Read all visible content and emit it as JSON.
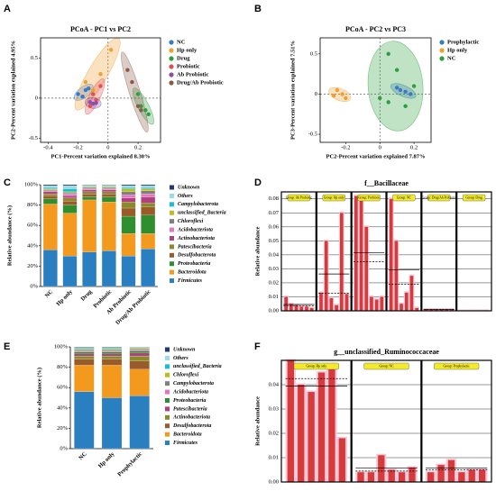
{
  "chart_data": [
    {
      "type": "scatter",
      "panel": "A",
      "title": "PCoA - PC1 vs PC2",
      "x_label": "PC1-Percent variation explained 8.30%",
      "y_label": "PC2-Percent variation explained 4.95%",
      "xlim": [
        -0.45,
        0.35
      ],
      "ylim": [
        -0.55,
        0.75
      ],
      "xticks": [
        -0.4,
        -0.2,
        0,
        0.2
      ],
      "yticks": [
        -0.5,
        0,
        0.5
      ],
      "series": [
        {
          "name": "NC",
          "color": "#3a78c9",
          "x": [
            -0.2,
            -0.15,
            -0.13,
            -0.17
          ],
          "y": [
            0.05,
            0.1,
            0.12,
            0.02
          ]
        },
        {
          "name": "Hp only",
          "color": "#f0a030",
          "x": [
            -0.15,
            -0.05,
            0.02,
            -0.1
          ],
          "y": [
            0.2,
            0.3,
            0.6,
            0.1
          ]
        },
        {
          "name": "Drug",
          "color": "#2e9e3e",
          "x": [
            0.2,
            0.22,
            0.25,
            0.27
          ],
          "y": [
            0.05,
            -0.1,
            -0.15,
            -0.2
          ]
        },
        {
          "name": "Probiotic",
          "color": "#e05050",
          "x": [
            -0.1,
            -0.08,
            -0.12,
            -0.05
          ],
          "y": [
            0.05,
            -0.02,
            -0.1,
            0.15
          ]
        },
        {
          "name": "Ab Probiotic",
          "color": "#8a4fa8",
          "x": [
            -0.12,
            -0.1,
            -0.08
          ],
          "y": [
            -0.05,
            -0.07,
            -0.06
          ]
        },
        {
          "name": "Drug/Ab Probiotic",
          "color": "#8b5a4a",
          "x": [
            0.13,
            0.16,
            0.2,
            0.22
          ],
          "y": [
            0.35,
            0.2,
            -0.1,
            -0.15
          ]
        }
      ]
    },
    {
      "type": "scatter",
      "panel": "B",
      "title": "PCoA - PC2 vs PC3",
      "x_label": "PC2-Percent variation explained 7.87%",
      "y_label": "PC3-Percent variation explained 7.51%",
      "xlim": [
        -0.35,
        0.3
      ],
      "ylim": [
        -0.6,
        0.7
      ],
      "xticks": [
        -0.2,
        0,
        0.2
      ],
      "yticks": [
        -0.5,
        0,
        0.5
      ],
      "series": [
        {
          "name": "Prophylactic",
          "color": "#3a78c9",
          "x": [
            0.12,
            0.15,
            0.18,
            0.1
          ],
          "y": [
            0.05,
            0.03,
            0.0,
            0.08
          ]
        },
        {
          "name": "Hp only",
          "color": "#f0a030",
          "x": [
            -0.25,
            -0.22,
            -0.2,
            -0.27
          ],
          "y": [
            0.05,
            0.0,
            -0.05,
            -0.02
          ]
        },
        {
          "name": "NC",
          "color": "#2e9e3e",
          "x": [
            0.05,
            0.1,
            0.05,
            0.15,
            0.0,
            0.2
          ],
          "y": [
            0.5,
            0.3,
            -0.1,
            -0.15,
            -0.05,
            0.1
          ]
        }
      ]
    },
    {
      "type": "stacked_bar",
      "panel": "C",
      "y_label": "Relative abundance (%)",
      "ylim": [
        0,
        100
      ],
      "yticks": [
        {
          "value": 0,
          "label": "0%"
        },
        {
          "value": 20,
          "label": "20%"
        },
        {
          "value": 40,
          "label": "40%"
        },
        {
          "value": 60,
          "label": "60%"
        },
        {
          "value": 80,
          "label": "80%"
        },
        {
          "value": 100,
          "label": "100%"
        }
      ],
      "categories": [
        "NC",
        "Hp only",
        "Drug",
        "Probiotic",
        "Ab Probiotic",
        "Drug/Ab Probiotic"
      ],
      "series": [
        {
          "name": "Firmicutes",
          "color": "#2a7fc0",
          "values": [
            36,
            30,
            34,
            35,
            30,
            37
          ]
        },
        {
          "name": "Bacteroidota",
          "color": "#f39a1e",
          "values": [
            45,
            42,
            51,
            48,
            22,
            15
          ]
        },
        {
          "name": "Proteobacteria",
          "color": "#2f8f2f",
          "values": [
            5,
            8,
            3,
            5,
            17,
            18
          ]
        },
        {
          "name": "Desulfobacterota",
          "color": "#9a5b2a",
          "values": [
            3,
            4,
            3,
            3,
            8,
            8
          ]
        },
        {
          "name": "Patescibacteria",
          "color": "#8a8a2a",
          "values": [
            2,
            3,
            2,
            2,
            6,
            4
          ]
        },
        {
          "name": "Actinobacteriota",
          "color": "#b04080",
          "values": [
            2,
            2,
            2,
            2,
            4,
            6
          ]
        },
        {
          "name": "Acidobacteriota",
          "color": "#e377c2",
          "values": [
            1,
            2,
            1,
            1,
            3,
            3
          ]
        },
        {
          "name": "Chloroflexi",
          "color": "#7f7f7f",
          "values": [
            1,
            1,
            1,
            1,
            3,
            3
          ]
        },
        {
          "name": "unclassified_Bacteria",
          "color": "#bcbd22",
          "values": [
            1,
            1,
            1,
            1,
            3,
            2
          ]
        },
        {
          "name": "Campylobacterota",
          "color": "#17becf",
          "values": [
            1,
            3,
            0.5,
            0.5,
            1,
            1
          ]
        },
        {
          "name": "Others",
          "color": "#9edae5",
          "values": [
            2,
            3,
            1,
            1,
            2,
            2
          ]
        },
        {
          "name": "Unknown",
          "color": "#1f3a7a",
          "values": [
            1,
            1,
            0.5,
            0.5,
            1,
            1
          ]
        }
      ]
    },
    {
      "type": "group_bar",
      "panel": "D",
      "title": "f__Bacillaceae",
      "y_label": "Relative abundance",
      "color": "#d63a3a",
      "ylim": [
        0,
        0.085
      ],
      "yticks": [
        {
          "value": 0,
          "label": "0.00"
        },
        0.01,
        0.02,
        0.03,
        0.04,
        0.05,
        0.06,
        0.07,
        0.08
      ],
      "groups": [
        {
          "label": "Group: Ab Probiotic",
          "values": [
            0.01,
            0.005,
            0.004,
            0.003,
            0.003,
            0.002
          ]
        },
        {
          "label": "Group: Hp only",
          "values": [
            0.013,
            0.05,
            0.009,
            0.004,
            0.07,
            0.012
          ]
        },
        {
          "label": "Group: Probiotic",
          "values": [
            0.082,
            0.08,
            0.06,
            0.01,
            0.008,
            0.01
          ]
        },
        {
          "label": "Group: NC",
          "values": [
            0.08,
            0.05,
            0.005,
            0.013,
            0.025,
            0.002
          ]
        },
        {
          "label": "Group: Drug/Ab Probiotic",
          "values": [
            0.001,
            0.001,
            0.001,
            0.001,
            0.001,
            0.001
          ]
        },
        {
          "label": "Group: Drug",
          "values": [
            0,
            0,
            0,
            0,
            0,
            0
          ]
        }
      ]
    },
    {
      "type": "stacked_bar",
      "panel": "E",
      "y_label": "Relative abundance (%)",
      "ylim": [
        0,
        100
      ],
      "yticks": [
        {
          "value": 0,
          "label": "0%"
        },
        {
          "value": 20,
          "label": "20%"
        },
        {
          "value": 40,
          "label": "40%"
        },
        {
          "value": 60,
          "label": "60%"
        },
        {
          "value": 80,
          "label": "80%"
        },
        {
          "value": 100,
          "label": "100%"
        }
      ],
      "categories": [
        "NC",
        "Hp only",
        "Prophylactic"
      ],
      "series": [
        {
          "name": "Firmicutes",
          "color": "#2a7fc0",
          "values": [
            56,
            50,
            52
          ]
        },
        {
          "name": "Bacteroidota",
          "color": "#f39a1e",
          "values": [
            26,
            32,
            26
          ]
        },
        {
          "name": "Desulfobacterota",
          "color": "#9a5b2a",
          "values": [
            6,
            6,
            8
          ]
        },
        {
          "name": "Actinobacteriota",
          "color": "#8a8a2a",
          "values": [
            3,
            3,
            5
          ]
        },
        {
          "name": "Patescibacteria",
          "color": "#b04080",
          "values": [
            2,
            2,
            3
          ]
        },
        {
          "name": "Proteobacteria",
          "color": "#2f8f2f",
          "values": [
            2,
            2,
            2
          ]
        },
        {
          "name": "Acidobacteriota",
          "color": "#e377c2",
          "values": [
            1,
            1,
            1
          ]
        },
        {
          "name": "Campylobacterota",
          "color": "#7f7f7f",
          "values": [
            1,
            1,
            1
          ]
        },
        {
          "name": "Chloroflexi",
          "color": "#bcbd22",
          "values": [
            1,
            1,
            1
          ]
        },
        {
          "name": "unclassified_Bacteria",
          "color": "#17becf",
          "values": [
            1,
            1,
            0.5
          ]
        },
        {
          "name": "Others",
          "color": "#9edae5",
          "values": [
            0.5,
            0.5,
            0.25
          ]
        },
        {
          "name": "Unknown",
          "color": "#1f3a7a",
          "values": [
            0.5,
            0.5,
            0.25
          ]
        }
      ]
    },
    {
      "type": "group_bar",
      "panel": "F",
      "title": "g__unclassified_Ruminococcaceae",
      "y_label": "Relative abundance",
      "color": "#d63a3a",
      "ylim": [
        0,
        0.05
      ],
      "yticks": [
        {
          "value": 0,
          "label": "0.00"
        },
        0.01,
        0.02,
        0.03,
        0.04
      ],
      "groups": [
        {
          "label": "Group: Hp only",
          "values": [
            0.05,
            0.04,
            0.037,
            0.045,
            0.047,
            0.018
          ]
        },
        {
          "label": "Group: NC",
          "values": [
            0.004,
            0.004,
            0.011,
            0.005,
            0.004,
            0.006
          ]
        },
        {
          "label": "Group: Prophylactic",
          "values": [
            0.004,
            0.007,
            0.009,
            0.004,
            0.005,
            0.005
          ]
        }
      ]
    }
  ]
}
